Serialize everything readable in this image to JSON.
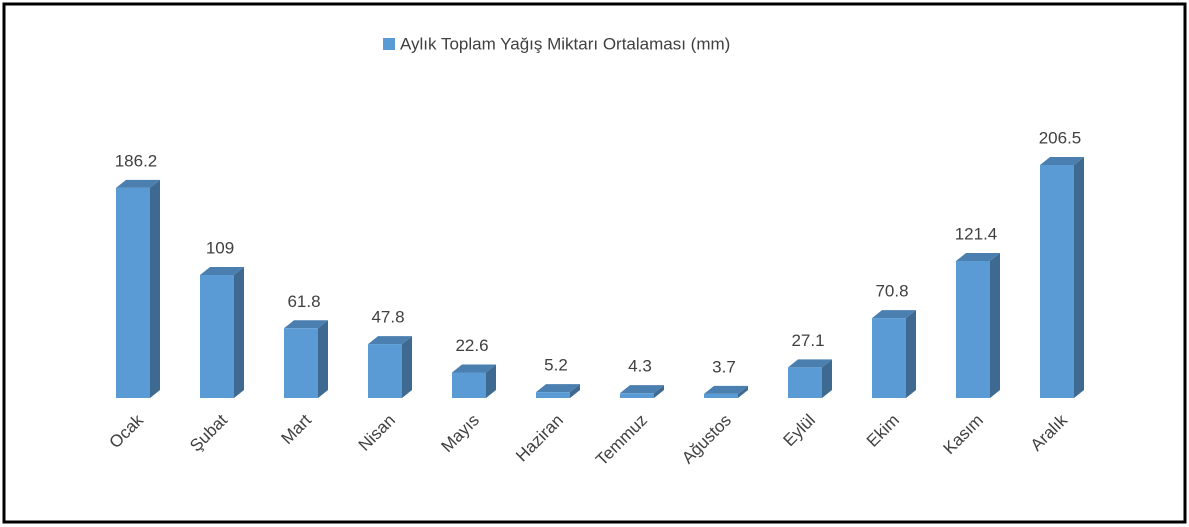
{
  "chart_data": {
    "type": "bar3d",
    "legend": "Aylık Toplam Yağış Miktarı Ortalaması (mm)",
    "legend_position": "top",
    "color": "#5b9bd5",
    "categories": [
      "Ocak",
      "Şubat",
      "Mart",
      "Nisan",
      "Mayıs",
      "Haziran",
      "Temmuz",
      "Ağustos",
      "Eylül",
      "Ekim",
      "Kasım",
      "Aralık"
    ],
    "values": [
      186.2,
      109,
      61.8,
      47.8,
      22.6,
      5.2,
      4.3,
      3.7,
      27.1,
      70.8,
      121.4,
      206.5
    ]
  }
}
